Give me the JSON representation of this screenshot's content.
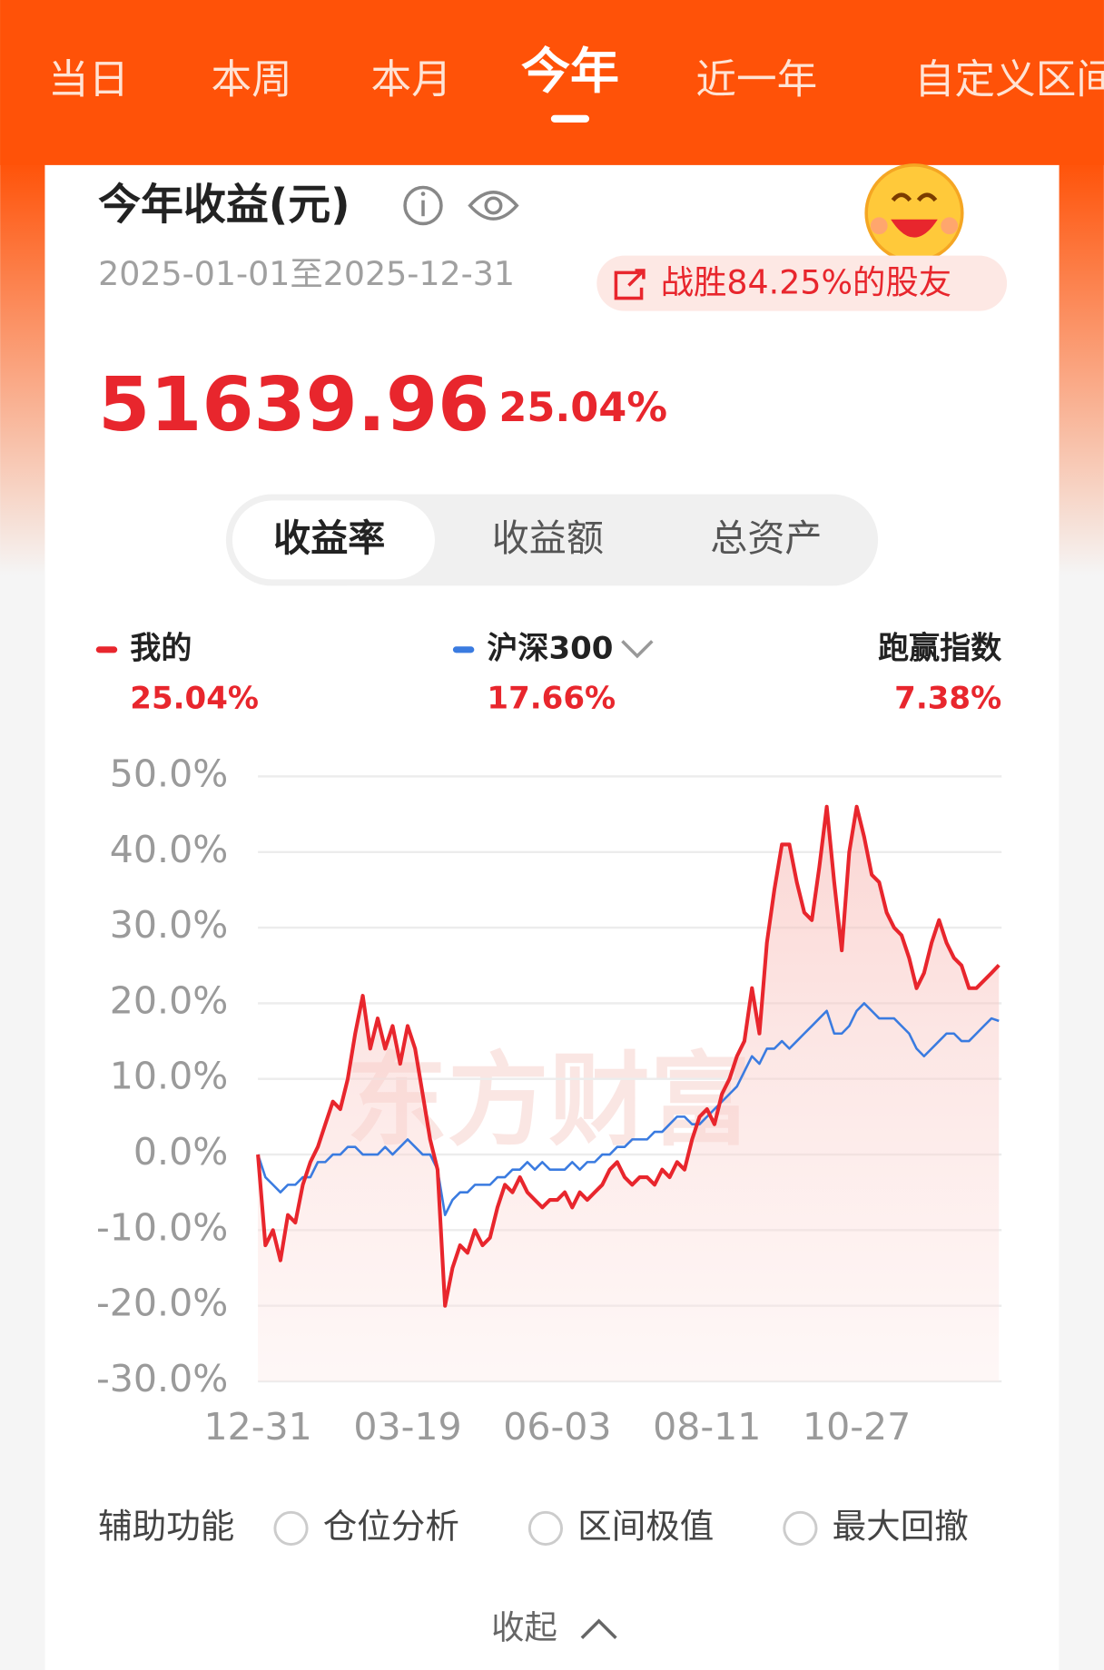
{
  "tabs": {
    "items": [
      "当日",
      "本周",
      "本月",
      "今年",
      "近一年",
      "自定义区间"
    ],
    "active": 3
  },
  "card": {
    "title": "今年收益(元)",
    "date_range": "2025-01-01至2025-12-31",
    "badge": "战胜84.25%的股友",
    "amount": "51639.96",
    "rate": "25.04%",
    "segments": {
      "items": [
        "收益率",
        "收益额",
        "总资产"
      ],
      "active": 0
    }
  },
  "chart_data": {
    "type": "line",
    "watermark": "东方财富",
    "categories": [
      "12-31",
      null,
      null,
      null,
      null,
      null,
      null,
      null,
      null,
      null,
      null,
      null,
      null,
      null,
      null,
      null,
      null,
      null,
      null,
      null,
      "03-19",
      null,
      null,
      null,
      null,
      null,
      null,
      null,
      null,
      null,
      null,
      null,
      null,
      null,
      null,
      null,
      null,
      null,
      null,
      null,
      "06-03",
      null,
      null,
      null,
      null,
      null,
      null,
      null,
      null,
      null,
      null,
      null,
      null,
      null,
      null,
      null,
      null,
      null,
      null,
      null,
      "08-11",
      null,
      null,
      null,
      null,
      null,
      null,
      null,
      null,
      null,
      null,
      null,
      null,
      null,
      null,
      null,
      null,
      null,
      null,
      null,
      "10-27",
      null,
      null,
      null,
      null,
      null,
      null,
      null,
      null,
      null,
      null,
      null,
      null,
      null,
      null,
      null,
      null,
      null,
      null,
      null
    ],
    "series": [
      {
        "name": "我的",
        "color": "#e8262d",
        "return_label": "25.04%",
        "values": [
          0,
          -12,
          -10,
          -14,
          -8,
          -9,
          -4,
          -1,
          1,
          4,
          7,
          6,
          10,
          16,
          21,
          14,
          18,
          14,
          17,
          12,
          17,
          14,
          8,
          2,
          -2,
          -20,
          -15,
          -12,
          -13,
          -10,
          -12,
          -11,
          -7,
          -4,
          -5,
          -3,
          -5,
          -6,
          -7,
          -6,
          -6,
          -5,
          -7,
          -5,
          -6,
          -5,
          -4,
          -2,
          -1,
          -3,
          -4,
          -3,
          -3,
          -4,
          -2,
          -3,
          -1,
          -2,
          2,
          5,
          6,
          4,
          8,
          10,
          13,
          15,
          22,
          16,
          28,
          35,
          41,
          41,
          36,
          32,
          31,
          38,
          46,
          36,
          27,
          40,
          46,
          42,
          37,
          36,
          32,
          30,
          29,
          26,
          22,
          24,
          28,
          31,
          28,
          26,
          25,
          22,
          22,
          23,
          24,
          25.04
        ]
      },
      {
        "name": "沪深300",
        "color": "#3a7be0",
        "return_label": "17.66%",
        "values": [
          0,
          -3,
          -4,
          -5,
          -4,
          -4,
          -3,
          -3,
          -1,
          -1,
          0,
          0,
          1,
          1,
          0,
          0,
          0,
          1,
          0,
          1,
          2,
          1,
          0,
          0,
          -2,
          -8,
          -6,
          -5,
          -5,
          -4,
          -4,
          -4,
          -3,
          -3,
          -2,
          -2,
          -1,
          -2,
          -1,
          -2,
          -2,
          -2,
          -1,
          -2,
          -1,
          -1,
          0,
          0,
          1,
          1,
          2,
          2,
          2,
          3,
          3,
          4,
          5,
          5,
          4,
          4,
          5,
          6,
          7,
          8,
          9,
          11,
          13,
          12,
          14,
          14,
          15,
          14,
          15,
          16,
          17,
          18,
          19,
          16,
          16,
          17,
          19,
          20,
          19,
          18,
          18,
          18,
          17,
          16,
          14,
          13,
          14,
          15,
          16,
          16,
          15,
          15,
          16,
          17,
          18,
          17.66
        ]
      }
    ],
    "outperform": {
      "label": "跑赢指数",
      "value": "7.38%"
    },
    "ylim": [
      -30,
      50
    ],
    "yticks": [
      {
        "value": 50,
        "label": "50.0%"
      },
      {
        "value": 40,
        "label": "40.0%"
      },
      {
        "value": 30,
        "label": "30.0%"
      },
      {
        "value": 20,
        "label": "20.0%"
      },
      {
        "value": 10,
        "label": "10.0%"
      },
      {
        "value": 0,
        "label": "0.0%"
      },
      {
        "value": -10,
        "label": "-10.0%"
      },
      {
        "value": -20,
        "label": "-20.0%"
      },
      {
        "value": -30,
        "label": "-30.0%"
      }
    ],
    "grid": true
  },
  "tools": {
    "label": "辅助功能",
    "options": [
      "仓位分析",
      "区间极值",
      "最大回撤"
    ]
  },
  "collapse": "收起"
}
